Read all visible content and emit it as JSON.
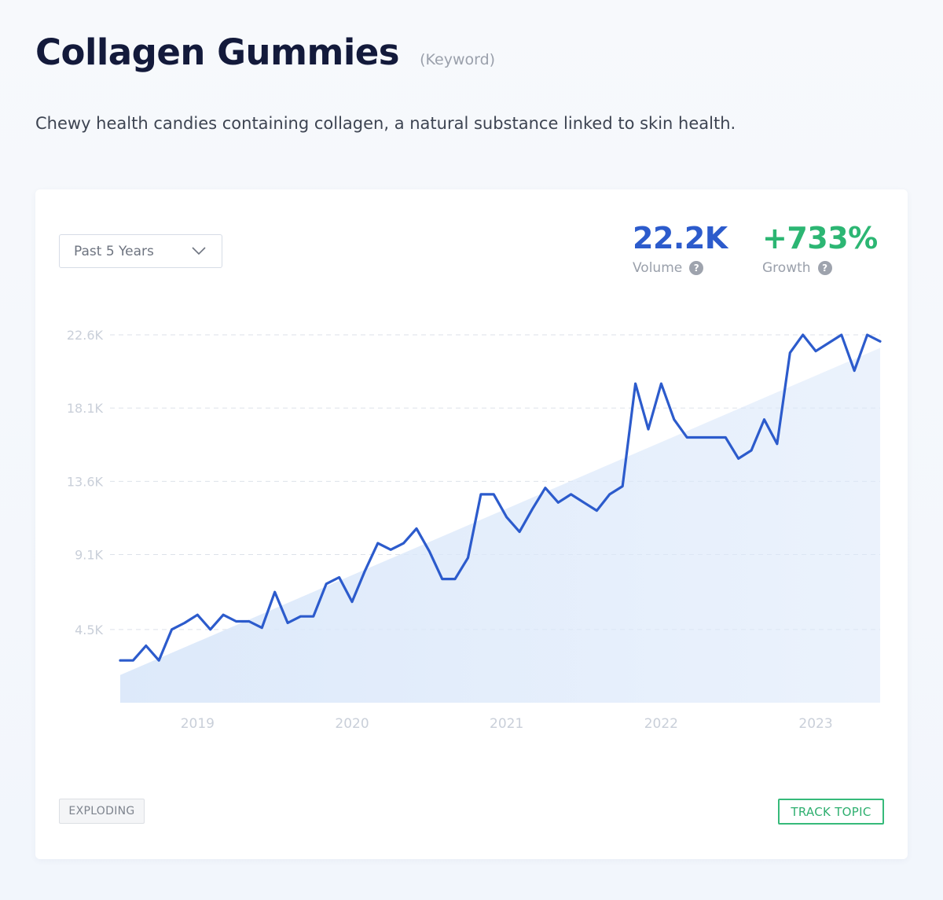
{
  "header": {
    "title": "Collagen Gummies",
    "tag": "(Keyword)",
    "description": "Chewy health candies containing collagen, a natural substance linked to skin health."
  },
  "controls": {
    "range_label": "Past 5 Years"
  },
  "metrics": {
    "volume": {
      "value": "22.2K",
      "label": "Volume"
    },
    "growth": {
      "value": "+733%",
      "label": "Growth"
    },
    "help_glyph": "?"
  },
  "footer": {
    "badge": "EXPLODING",
    "track_button": "TRACK TOPIC"
  },
  "colors": {
    "line": "#2c5bcc",
    "volume": "#2c5bcc",
    "growth": "#2cb673",
    "trend_fill": "#dbe8fa"
  },
  "chart_data": {
    "type": "line",
    "title": "",
    "xlabel": "",
    "ylabel": "",
    "x_ticks": [
      "2019",
      "2020",
      "2021",
      "2022",
      "2023"
    ],
    "y_ticks": [
      4500,
      9100,
      13600,
      18100,
      22600
    ],
    "y_tick_labels": [
      "4.5K",
      "9.1K",
      "13.6K",
      "18.1K",
      "22.6K"
    ],
    "ylim": [
      0,
      22600
    ],
    "grid": true,
    "x_range": [
      "2018-09",
      "2023-08"
    ],
    "series": [
      {
        "x": [
          "2018-09",
          "2018-10",
          "2018-11",
          "2018-12",
          "2019-01",
          "2019-02",
          "2019-03",
          "2019-04",
          "2019-05",
          "2019-06",
          "2019-07",
          "2019-08",
          "2019-09",
          "2019-10",
          "2019-11",
          "2019-12",
          "2020-01",
          "2020-02",
          "2020-03",
          "2020-04",
          "2020-05",
          "2020-06",
          "2020-07",
          "2020-08",
          "2020-09",
          "2020-10",
          "2020-11",
          "2020-12",
          "2021-01",
          "2021-02",
          "2021-03",
          "2021-04",
          "2021-05",
          "2021-06",
          "2021-07",
          "2021-08",
          "2021-09",
          "2021-10",
          "2021-11",
          "2021-12",
          "2022-01",
          "2022-02",
          "2022-03",
          "2022-04",
          "2022-05",
          "2022-06",
          "2022-07",
          "2022-08",
          "2022-09",
          "2022-10",
          "2022-11",
          "2022-12",
          "2023-01",
          "2023-02",
          "2023-03",
          "2023-04",
          "2023-05",
          "2023-06",
          "2023-07",
          "2023-08"
        ],
        "values": [
          2600,
          2600,
          3500,
          2600,
          4500,
          4900,
          5400,
          4500,
          5400,
          5000,
          5000,
          4600,
          6800,
          4900,
          5300,
          5300,
          7300,
          7700,
          6200,
          8100,
          9800,
          9400,
          9800,
          10700,
          9300,
          7600,
          7600,
          8900,
          12800,
          12800,
          11400,
          10500,
          11900,
          13200,
          12300,
          12800,
          12300,
          11800,
          12800,
          13300,
          19600,
          16800,
          19600,
          17400,
          16300,
          16300,
          16300,
          16300,
          15000,
          15500,
          17400,
          15900,
          21500,
          22600,
          21600,
          22100,
          22600,
          20400,
          22600,
          22200
        ],
        "trend": [
          1700,
          21800
        ]
      }
    ]
  }
}
